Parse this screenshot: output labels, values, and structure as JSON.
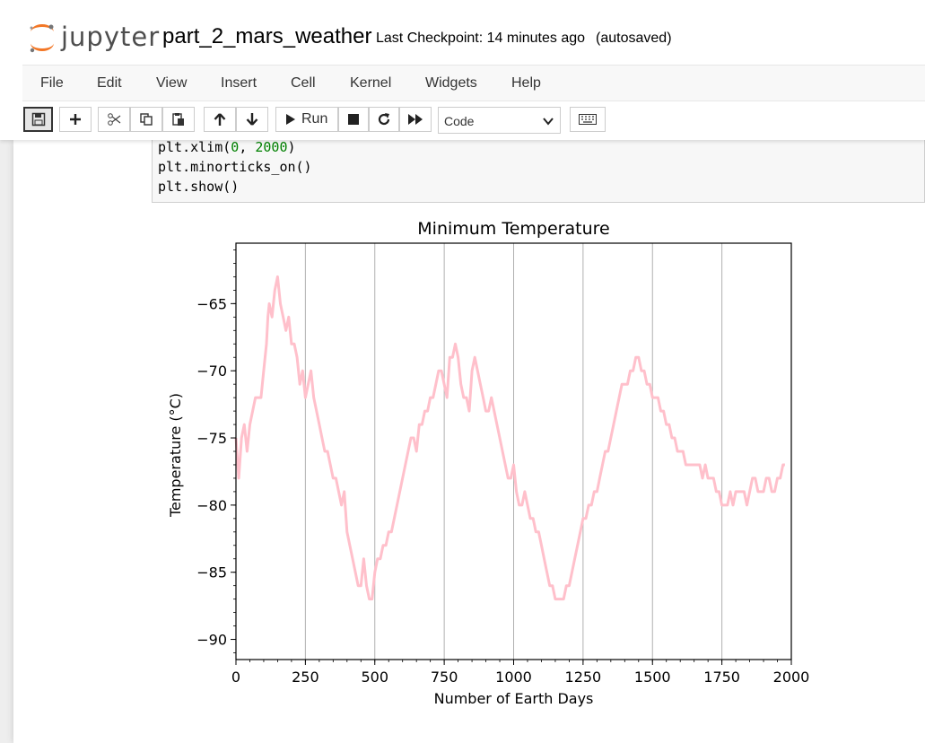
{
  "header": {
    "logo_text": "jupyter",
    "notebook_name": "part_2_mars_weather",
    "checkpoint": "Last Checkpoint: 14 minutes ago",
    "autosave": "(autosaved)"
  },
  "menu": {
    "items": [
      {
        "label": "File"
      },
      {
        "label": "Edit"
      },
      {
        "label": "View"
      },
      {
        "label": "Insert"
      },
      {
        "label": "Cell"
      },
      {
        "label": "Kernel"
      },
      {
        "label": "Widgets"
      },
      {
        "label": "Help"
      }
    ]
  },
  "toolbar": {
    "run_label": "Run",
    "cell_type": "Code",
    "icons": [
      "save-icon",
      "plus-icon",
      "scissors-icon",
      "copy-icon",
      "paste-icon",
      "arrow-up-icon",
      "arrow-down-icon",
      "run-icon",
      "stop-icon",
      "restart-icon",
      "fast-forward-icon",
      "keyboard-icon"
    ]
  },
  "code": {
    "lines": [
      {
        "pre": "plt.xlim(",
        "n1": "0",
        "mid": ", ",
        "n2": "2000",
        "post": ")"
      },
      {
        "text": "plt.minorticks_on()"
      },
      {
        "text": "plt.show()"
      }
    ]
  },
  "colors": {
    "series": "#ffc0cb",
    "accent": "#f37726"
  },
  "chart_data": {
    "type": "line",
    "title": "Minimum Temperature",
    "xlabel": "Number of Earth Days",
    "ylabel": "Temperature (°C)",
    "xlim": [
      0,
      2000
    ],
    "ylim": [
      -91.5,
      -60.5
    ],
    "xticks": [
      0,
      250,
      500,
      750,
      1000,
      1250,
      1500,
      1750,
      2000
    ],
    "yticks": [
      -90,
      -85,
      -80,
      -75,
      -70,
      -65
    ],
    "x_grid_lines": [
      250,
      500,
      750,
      1000,
      1250,
      1500,
      1750
    ],
    "minor_ticks": true,
    "series": [
      {
        "color": "#ffc0cb",
        "points": [
          [
            0,
            -75
          ],
          [
            10,
            -78
          ],
          [
            20,
            -75
          ],
          [
            30,
            -74
          ],
          [
            40,
            -76
          ],
          [
            50,
            -74
          ],
          [
            60,
            -73
          ],
          [
            70,
            -72
          ],
          [
            80,
            -72
          ],
          [
            90,
            -72
          ],
          [
            100,
            -70
          ],
          [
            110,
            -68
          ],
          [
            115,
            -66
          ],
          [
            120,
            -65
          ],
          [
            130,
            -66
          ],
          [
            140,
            -64
          ],
          [
            150,
            -63
          ],
          [
            160,
            -65
          ],
          [
            170,
            -66
          ],
          [
            180,
            -67
          ],
          [
            190,
            -66
          ],
          [
            200,
            -68
          ],
          [
            210,
            -68
          ],
          [
            220,
            -69
          ],
          [
            230,
            -71
          ],
          [
            240,
            -70
          ],
          [
            250,
            -72
          ],
          [
            260,
            -71
          ],
          [
            270,
            -70
          ],
          [
            280,
            -72
          ],
          [
            290,
            -73
          ],
          [
            300,
            -74
          ],
          [
            310,
            -75
          ],
          [
            320,
            -76
          ],
          [
            330,
            -76
          ],
          [
            340,
            -77
          ],
          [
            350,
            -78
          ],
          [
            360,
            -78
          ],
          [
            370,
            -79
          ],
          [
            380,
            -80
          ],
          [
            390,
            -79
          ],
          [
            400,
            -82
          ],
          [
            410,
            -83
          ],
          [
            420,
            -84
          ],
          [
            430,
            -85
          ],
          [
            440,
            -86
          ],
          [
            450,
            -86
          ],
          [
            460,
            -84
          ],
          [
            470,
            -86
          ],
          [
            480,
            -87
          ],
          [
            490,
            -87
          ],
          [
            500,
            -85
          ],
          [
            510,
            -84
          ],
          [
            520,
            -84
          ],
          [
            530,
            -83
          ],
          [
            540,
            -83
          ],
          [
            550,
            -82
          ],
          [
            560,
            -82
          ],
          [
            570,
            -81
          ],
          [
            580,
            -80
          ],
          [
            590,
            -79
          ],
          [
            600,
            -78
          ],
          [
            610,
            -77
          ],
          [
            620,
            -76
          ],
          [
            630,
            -75
          ],
          [
            640,
            -75
          ],
          [
            650,
            -76
          ],
          [
            660,
            -74
          ],
          [
            670,
            -74
          ],
          [
            680,
            -73
          ],
          [
            690,
            -73
          ],
          [
            700,
            -72
          ],
          [
            710,
            -72
          ],
          [
            720,
            -71
          ],
          [
            730,
            -70
          ],
          [
            740,
            -70
          ],
          [
            750,
            -71
          ],
          [
            760,
            -72
          ],
          [
            770,
            -69
          ],
          [
            780,
            -69
          ],
          [
            790,
            -68
          ],
          [
            800,
            -69
          ],
          [
            810,
            -71
          ],
          [
            820,
            -72
          ],
          [
            830,
            -72
          ],
          [
            840,
            -73
          ],
          [
            850,
            -70
          ],
          [
            860,
            -69
          ],
          [
            870,
            -70
          ],
          [
            880,
            -71
          ],
          [
            890,
            -72
          ],
          [
            900,
            -73
          ],
          [
            910,
            -73
          ],
          [
            920,
            -72
          ],
          [
            930,
            -73
          ],
          [
            940,
            -74
          ],
          [
            950,
            -75
          ],
          [
            960,
            -76
          ],
          [
            970,
            -77
          ],
          [
            980,
            -78
          ],
          [
            990,
            -78
          ],
          [
            1000,
            -77
          ],
          [
            1010,
            -79
          ],
          [
            1020,
            -80
          ],
          [
            1030,
            -80
          ],
          [
            1040,
            -79
          ],
          [
            1050,
            -80
          ],
          [
            1060,
            -81
          ],
          [
            1070,
            -81
          ],
          [
            1080,
            -82
          ],
          [
            1090,
            -82
          ],
          [
            1100,
            -83
          ],
          [
            1110,
            -84
          ],
          [
            1120,
            -85
          ],
          [
            1130,
            -86
          ],
          [
            1140,
            -86
          ],
          [
            1150,
            -87
          ],
          [
            1160,
            -87
          ],
          [
            1170,
            -87
          ],
          [
            1180,
            -87
          ],
          [
            1190,
            -86
          ],
          [
            1200,
            -86
          ],
          [
            1210,
            -85
          ],
          [
            1220,
            -84
          ],
          [
            1230,
            -83
          ],
          [
            1240,
            -82
          ],
          [
            1250,
            -81
          ],
          [
            1260,
            -81
          ],
          [
            1270,
            -80
          ],
          [
            1280,
            -80
          ],
          [
            1290,
            -79
          ],
          [
            1300,
            -79
          ],
          [
            1310,
            -78
          ],
          [
            1320,
            -77
          ],
          [
            1330,
            -76
          ],
          [
            1340,
            -76
          ],
          [
            1350,
            -75
          ],
          [
            1360,
            -74
          ],
          [
            1370,
            -73
          ],
          [
            1380,
            -72
          ],
          [
            1390,
            -71
          ],
          [
            1400,
            -71
          ],
          [
            1410,
            -71
          ],
          [
            1420,
            -70
          ],
          [
            1430,
            -70
          ],
          [
            1440,
            -69
          ],
          [
            1450,
            -69
          ],
          [
            1460,
            -70
          ],
          [
            1470,
            -70
          ],
          [
            1480,
            -71
          ],
          [
            1490,
            -71
          ],
          [
            1500,
            -72
          ],
          [
            1510,
            -72
          ],
          [
            1520,
            -72
          ],
          [
            1530,
            -73
          ],
          [
            1540,
            -73
          ],
          [
            1550,
            -74
          ],
          [
            1560,
            -74
          ],
          [
            1570,
            -75
          ],
          [
            1580,
            -75
          ],
          [
            1590,
            -76
          ],
          [
            1600,
            -76
          ],
          [
            1610,
            -76
          ],
          [
            1620,
            -77
          ],
          [
            1630,
            -77
          ],
          [
            1640,
            -77
          ],
          [
            1650,
            -77
          ],
          [
            1660,
            -77
          ],
          [
            1670,
            -77
          ],
          [
            1680,
            -78
          ],
          [
            1690,
            -77
          ],
          [
            1700,
            -78
          ],
          [
            1710,
            -78
          ],
          [
            1720,
            -78
          ],
          [
            1730,
            -79
          ],
          [
            1740,
            -79
          ],
          [
            1750,
            -80
          ],
          [
            1760,
            -80
          ],
          [
            1770,
            -80
          ],
          [
            1780,
            -79
          ],
          [
            1790,
            -80
          ],
          [
            1800,
            -79
          ],
          [
            1810,
            -79
          ],
          [
            1820,
            -79
          ],
          [
            1830,
            -79
          ],
          [
            1840,
            -80
          ],
          [
            1850,
            -79
          ],
          [
            1860,
            -78
          ],
          [
            1870,
            -78
          ],
          [
            1880,
            -79
          ],
          [
            1890,
            -79
          ],
          [
            1900,
            -79
          ],
          [
            1910,
            -78
          ],
          [
            1920,
            -78
          ],
          [
            1930,
            -79
          ],
          [
            1940,
            -79
          ],
          [
            1950,
            -78
          ],
          [
            1960,
            -78
          ],
          [
            1970,
            -77
          ],
          [
            1977,
            -77
          ]
        ]
      }
    ]
  }
}
